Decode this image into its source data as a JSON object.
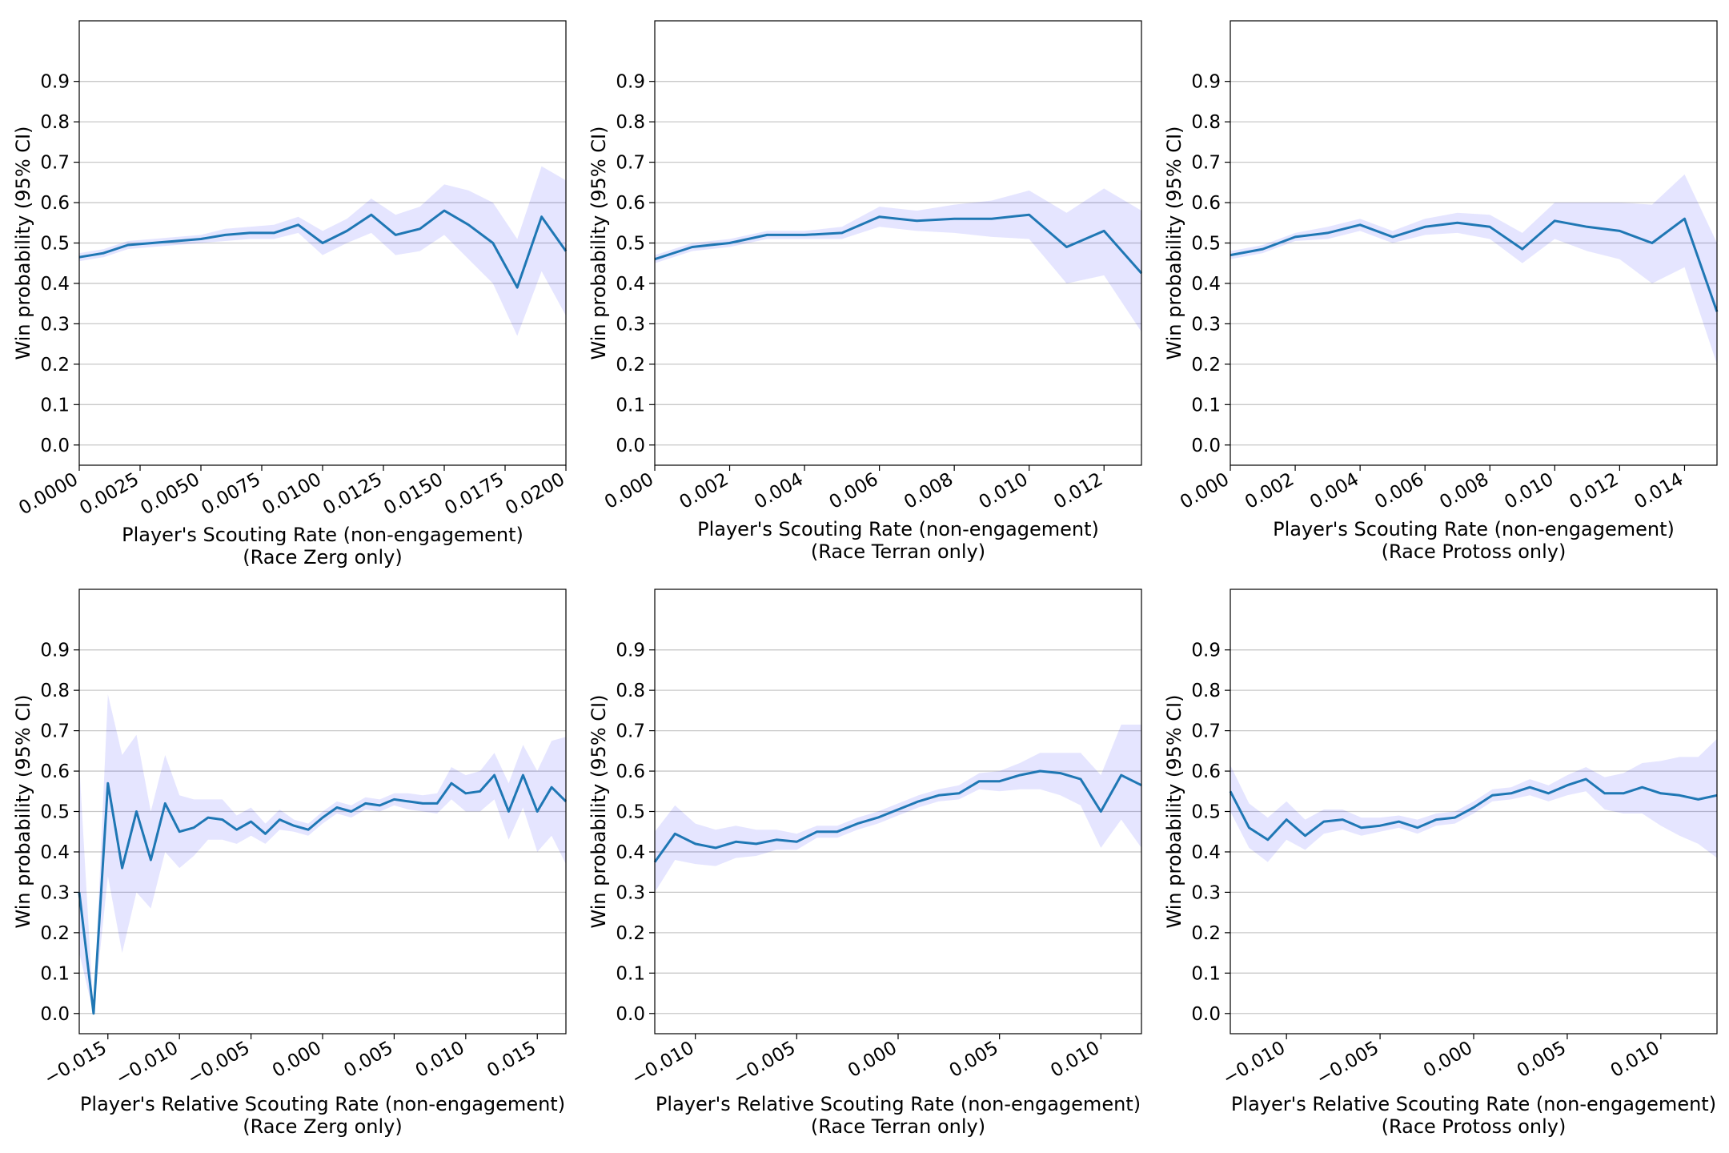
{
  "figure": {
    "ylabel": "Win probability (95% CI)",
    "yticks": [
      "0.0",
      "0.1",
      "0.2",
      "0.3",
      "0.4",
      "0.5",
      "0.6",
      "0.7",
      "0.8",
      "0.9"
    ]
  },
  "chart_data": [
    {
      "type": "line",
      "xlabel": "Player's Scouting Rate (non-engagement)",
      "xlabel2": "(Race Zerg only)",
      "ylabel": "Win probability (95% CI)",
      "xlim": [
        0.0,
        0.02
      ],
      "ylim": [
        -0.05,
        1.05
      ],
      "grid": "y",
      "xticks": [
        "0.0000",
        "0.0025",
        "0.0050",
        "0.0075",
        "0.0100",
        "0.0125",
        "0.0150",
        "0.0175",
        "0.0200"
      ],
      "xtick_values": [
        0.0,
        0.0025,
        0.005,
        0.0075,
        0.01,
        0.0125,
        0.015,
        0.0175,
        0.02
      ],
      "x": [
        0.0,
        0.001,
        0.002,
        0.003,
        0.004,
        0.005,
        0.006,
        0.007,
        0.008,
        0.009,
        0.01,
        0.011,
        0.012,
        0.013,
        0.014,
        0.015,
        0.016,
        0.017,
        0.018,
        0.019,
        0.02
      ],
      "y": [
        0.465,
        0.475,
        0.495,
        0.5,
        0.505,
        0.51,
        0.52,
        0.525,
        0.525,
        0.545,
        0.5,
        0.53,
        0.57,
        0.52,
        0.535,
        0.58,
        0.545,
        0.5,
        0.39,
        0.565,
        0.48
      ],
      "ci_low": [
        0.455,
        0.465,
        0.485,
        0.49,
        0.495,
        0.5,
        0.505,
        0.51,
        0.51,
        0.525,
        0.47,
        0.5,
        0.525,
        0.47,
        0.48,
        0.52,
        0.46,
        0.4,
        0.27,
        0.43,
        0.32
      ],
      "ci_high": [
        0.475,
        0.485,
        0.505,
        0.51,
        0.515,
        0.52,
        0.535,
        0.54,
        0.545,
        0.565,
        0.53,
        0.56,
        0.61,
        0.57,
        0.59,
        0.645,
        0.63,
        0.6,
        0.51,
        0.69,
        0.655
      ]
    },
    {
      "type": "line",
      "xlabel": "Player's Scouting Rate (non-engagement)",
      "xlabel2": "(Race Terran only)",
      "ylabel": "Win probability (95% CI)",
      "xlim": [
        0.0,
        0.013
      ],
      "ylim": [
        -0.05,
        1.05
      ],
      "grid": "y",
      "xticks": [
        "0.000",
        "0.002",
        "0.004",
        "0.006",
        "0.008",
        "0.010",
        "0.012"
      ],
      "xtick_values": [
        0.0,
        0.002,
        0.004,
        0.006,
        0.008,
        0.01,
        0.012
      ],
      "x": [
        0.0,
        0.001,
        0.002,
        0.003,
        0.004,
        0.005,
        0.006,
        0.007,
        0.008,
        0.009,
        0.01,
        0.011,
        0.012,
        0.013
      ],
      "y": [
        0.46,
        0.49,
        0.5,
        0.52,
        0.52,
        0.525,
        0.565,
        0.555,
        0.56,
        0.56,
        0.57,
        0.49,
        0.53,
        0.425
      ],
      "ci_low": [
        0.45,
        0.48,
        0.49,
        0.51,
        0.51,
        0.51,
        0.54,
        0.53,
        0.525,
        0.515,
        0.51,
        0.4,
        0.42,
        0.28
      ],
      "ci_high": [
        0.47,
        0.5,
        0.51,
        0.53,
        0.53,
        0.54,
        0.59,
        0.58,
        0.595,
        0.605,
        0.63,
        0.575,
        0.635,
        0.58
      ]
    },
    {
      "type": "line",
      "xlabel": "Player's Scouting Rate (non-engagement)",
      "xlabel2": "(Race Protoss only)",
      "ylabel": "Win probability (95% CI)",
      "xlim": [
        0.0,
        0.015
      ],
      "ylim": [
        -0.05,
        1.05
      ],
      "grid": "y",
      "xticks": [
        "0.000",
        "0.002",
        "0.004",
        "0.006",
        "0.008",
        "0.010",
        "0.012",
        "0.014"
      ],
      "xtick_values": [
        0.0,
        0.002,
        0.004,
        0.006,
        0.008,
        0.01,
        0.012,
        0.014
      ],
      "x": [
        0.0,
        0.001,
        0.002,
        0.003,
        0.004,
        0.005,
        0.006,
        0.007,
        0.008,
        0.009,
        0.01,
        0.011,
        0.012,
        0.013,
        0.014,
        0.015
      ],
      "y": [
        0.47,
        0.485,
        0.515,
        0.525,
        0.545,
        0.515,
        0.54,
        0.55,
        0.54,
        0.485,
        0.555,
        0.54,
        0.53,
        0.5,
        0.56,
        0.33
      ],
      "ci_low": [
        0.46,
        0.475,
        0.505,
        0.51,
        0.53,
        0.5,
        0.52,
        0.525,
        0.51,
        0.45,
        0.51,
        0.48,
        0.46,
        0.4,
        0.44,
        0.2
      ],
      "ci_high": [
        0.48,
        0.495,
        0.525,
        0.54,
        0.56,
        0.53,
        0.56,
        0.575,
        0.57,
        0.525,
        0.6,
        0.6,
        0.6,
        0.595,
        0.67,
        0.5
      ]
    },
    {
      "type": "line",
      "xlabel": "Player's Relative Scouting Rate (non-engagement)",
      "xlabel2": "(Race Zerg only)",
      "ylabel": "Win probability (95% CI)",
      "xlim": [
        -0.017,
        0.017
      ],
      "ylim": [
        -0.05,
        1.05
      ],
      "grid": "y",
      "xticks": [
        "−0.015",
        "−0.010",
        "−0.005",
        "0.000",
        "0.005",
        "0.010",
        "0.015"
      ],
      "xtick_values": [
        -0.015,
        -0.01,
        -0.005,
        0.0,
        0.005,
        0.01,
        0.015
      ],
      "x": [
        -0.017,
        -0.016,
        -0.015,
        -0.014,
        -0.013,
        -0.012,
        -0.011,
        -0.01,
        -0.009,
        -0.008,
        -0.007,
        -0.006,
        -0.005,
        -0.004,
        -0.003,
        -0.002,
        -0.001,
        0.0,
        0.001,
        0.002,
        0.003,
        0.004,
        0.005,
        0.006,
        0.007,
        0.008,
        0.009,
        0.01,
        0.011,
        0.012,
        0.013,
        0.014,
        0.015,
        0.016,
        0.017
      ],
      "y": [
        0.3,
        0.0,
        0.57,
        0.36,
        0.5,
        0.38,
        0.52,
        0.45,
        0.46,
        0.485,
        0.48,
        0.455,
        0.475,
        0.445,
        0.48,
        0.465,
        0.455,
        0.485,
        0.51,
        0.5,
        0.52,
        0.515,
        0.53,
        0.525,
        0.52,
        0.52,
        0.57,
        0.545,
        0.55,
        0.59,
        0.5,
        0.59,
        0.5,
        0.56,
        0.525
      ],
      "ci_low": [
        0.15,
        0.0,
        0.34,
        0.15,
        0.3,
        0.26,
        0.4,
        0.36,
        0.39,
        0.43,
        0.43,
        0.42,
        0.44,
        0.42,
        0.455,
        0.45,
        0.44,
        0.47,
        0.495,
        0.485,
        0.505,
        0.5,
        0.515,
        0.505,
        0.5,
        0.495,
        0.53,
        0.5,
        0.5,
        0.53,
        0.43,
        0.51,
        0.4,
        0.44,
        0.37
      ],
      "ci_high": [
        0.62,
        0.0,
        0.79,
        0.64,
        0.69,
        0.5,
        0.64,
        0.54,
        0.53,
        0.53,
        0.53,
        0.49,
        0.51,
        0.47,
        0.505,
        0.48,
        0.47,
        0.5,
        0.525,
        0.515,
        0.535,
        0.53,
        0.545,
        0.545,
        0.54,
        0.545,
        0.61,
        0.59,
        0.6,
        0.645,
        0.57,
        0.665,
        0.6,
        0.675,
        0.685
      ]
    },
    {
      "type": "line",
      "xlabel": "Player's Relative Scouting Rate (non-engagement)",
      "xlabel2": "(Race Terran only)",
      "ylabel": "Win probability (95% CI)",
      "xlim": [
        -0.012,
        0.012
      ],
      "ylim": [
        -0.05,
        1.05
      ],
      "grid": "y",
      "xticks": [
        "−0.010",
        "−0.005",
        "0.000",
        "0.005",
        "0.010"
      ],
      "xtick_values": [
        -0.01,
        -0.005,
        0.0,
        0.005,
        0.01
      ],
      "x": [
        -0.012,
        -0.011,
        -0.01,
        -0.009,
        -0.008,
        -0.007,
        -0.006,
        -0.005,
        -0.004,
        -0.003,
        -0.002,
        -0.001,
        0.0,
        0.001,
        0.002,
        0.003,
        0.004,
        0.005,
        0.006,
        0.007,
        0.008,
        0.009,
        0.01,
        0.011,
        0.012
      ],
      "y": [
        0.375,
        0.445,
        0.42,
        0.41,
        0.425,
        0.42,
        0.43,
        0.425,
        0.45,
        0.45,
        0.47,
        0.485,
        0.505,
        0.525,
        0.54,
        0.545,
        0.575,
        0.575,
        0.59,
        0.6,
        0.595,
        0.58,
        0.5,
        0.59,
        0.565
      ],
      "ci_low": [
        0.3,
        0.38,
        0.37,
        0.365,
        0.385,
        0.39,
        0.405,
        0.405,
        0.435,
        0.435,
        0.455,
        0.47,
        0.49,
        0.51,
        0.525,
        0.53,
        0.555,
        0.55,
        0.555,
        0.555,
        0.54,
        0.515,
        0.41,
        0.48,
        0.41
      ],
      "ci_high": [
        0.45,
        0.515,
        0.47,
        0.455,
        0.465,
        0.455,
        0.455,
        0.445,
        0.465,
        0.465,
        0.485,
        0.5,
        0.52,
        0.54,
        0.555,
        0.565,
        0.595,
        0.6,
        0.62,
        0.645,
        0.645,
        0.645,
        0.59,
        0.715,
        0.715
      ]
    },
    {
      "type": "line",
      "xlabel": "Player's Relative Scouting Rate (non-engagement)",
      "xlabel2": "(Race Protoss only)",
      "ylabel": "Win probability (95% CI)",
      "xlim": [
        -0.013,
        0.013
      ],
      "ylim": [
        -0.05,
        1.05
      ],
      "grid": "y",
      "xticks": [
        "−0.010",
        "−0.005",
        "0.000",
        "0.005",
        "0.010"
      ],
      "xtick_values": [
        -0.01,
        -0.005,
        0.0,
        0.005,
        0.01
      ],
      "x": [
        -0.013,
        -0.012,
        -0.011,
        -0.01,
        -0.009,
        -0.008,
        -0.007,
        -0.006,
        -0.005,
        -0.004,
        -0.003,
        -0.002,
        -0.001,
        0.0,
        0.001,
        0.002,
        0.003,
        0.004,
        0.005,
        0.006,
        0.007,
        0.008,
        0.009,
        0.01,
        0.011,
        0.012,
        0.013
      ],
      "y": [
        0.55,
        0.46,
        0.43,
        0.48,
        0.44,
        0.475,
        0.48,
        0.46,
        0.465,
        0.475,
        0.46,
        0.48,
        0.485,
        0.51,
        0.54,
        0.545,
        0.56,
        0.545,
        0.565,
        0.58,
        0.545,
        0.545,
        0.56,
        0.545,
        0.54,
        0.53,
        0.54
      ],
      "ci_low": [
        0.5,
        0.41,
        0.375,
        0.43,
        0.405,
        0.445,
        0.455,
        0.44,
        0.45,
        0.46,
        0.445,
        0.465,
        0.47,
        0.495,
        0.525,
        0.53,
        0.54,
        0.525,
        0.54,
        0.55,
        0.505,
        0.495,
        0.495,
        0.465,
        0.44,
        0.42,
        0.385
      ],
      "ci_high": [
        0.615,
        0.52,
        0.485,
        0.525,
        0.48,
        0.505,
        0.505,
        0.485,
        0.485,
        0.49,
        0.48,
        0.495,
        0.5,
        0.525,
        0.555,
        0.56,
        0.58,
        0.565,
        0.59,
        0.61,
        0.585,
        0.595,
        0.62,
        0.625,
        0.635,
        0.635,
        0.68
      ]
    }
  ]
}
